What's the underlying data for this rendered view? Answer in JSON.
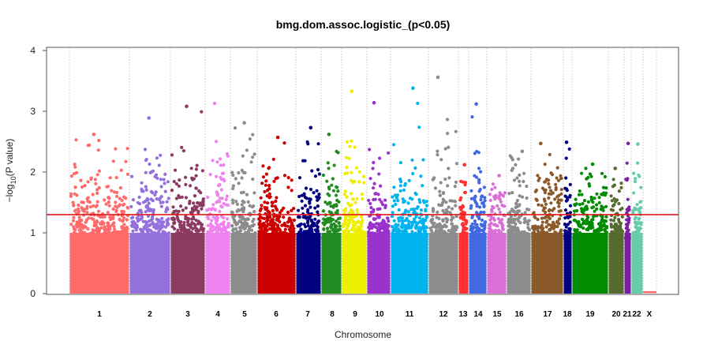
{
  "chart_data": {
    "type": "scatter",
    "title": "bmg.dom.assoc.logistic_(p<0.05)",
    "xlabel": "Chromosome",
    "ylabel": "−log10(P value)",
    "ylim": [
      0,
      4
    ],
    "y_ticks": [
      "0",
      "1",
      "2",
      "3",
      "4"
    ],
    "threshold": 1.3,
    "threshold_color": "#e31a1c",
    "grid": "vertical dotted lines at chromosome boundaries",
    "chromosomes": [
      {
        "label": "1",
        "color": "#ff6b6b",
        "max": 2.62
      },
      {
        "label": "2",
        "color": "#9370db",
        "max": 2.89
      },
      {
        "label": "3",
        "color": "#8b3a62",
        "max": 3.08
      },
      {
        "label": "4",
        "color": "#ee82ee",
        "max": 3.13
      },
      {
        "label": "5",
        "color": "#8c8c8c",
        "max": 2.81
      },
      {
        "label": "6",
        "color": "#cd0000",
        "max": 2.57
      },
      {
        "label": "7",
        "color": "#000080",
        "max": 2.73
      },
      {
        "label": "8",
        "color": "#228b22",
        "max": 2.62
      },
      {
        "label": "9",
        "color": "#eeee00",
        "max": 3.33
      },
      {
        "label": "10",
        "color": "#9a32cd",
        "max": 3.14
      },
      {
        "label": "11",
        "color": "#00b2ee",
        "max": 3.38
      },
      {
        "label": "12",
        "color": "#8c8c8c",
        "max": 3.56
      },
      {
        "label": "13",
        "color": "#ff3030",
        "max": 2.12
      },
      {
        "label": "14",
        "color": "#4169e1",
        "max": 3.12
      },
      {
        "label": "15",
        "color": "#da70d6",
        "max": 1.94
      },
      {
        "label": "16",
        "color": "#8c8c8c",
        "max": 2.34
      },
      {
        "label": "17",
        "color": "#8b5a2b",
        "max": 2.47
      },
      {
        "label": "18",
        "color": "#000080",
        "max": 2.49
      },
      {
        "label": "19",
        "color": "#008b00",
        "max": 2.13
      },
      {
        "label": "20",
        "color": "#556b2f",
        "max": 2.06
      },
      {
        "label": "21",
        "color": "#7b1fa2",
        "max": 2.47
      },
      {
        "label": "22",
        "color": "#66cdaa",
        "max": 2.46
      },
      {
        "label": "X",
        "color": "#ff6b6b",
        "max": 0.03
      }
    ]
  }
}
